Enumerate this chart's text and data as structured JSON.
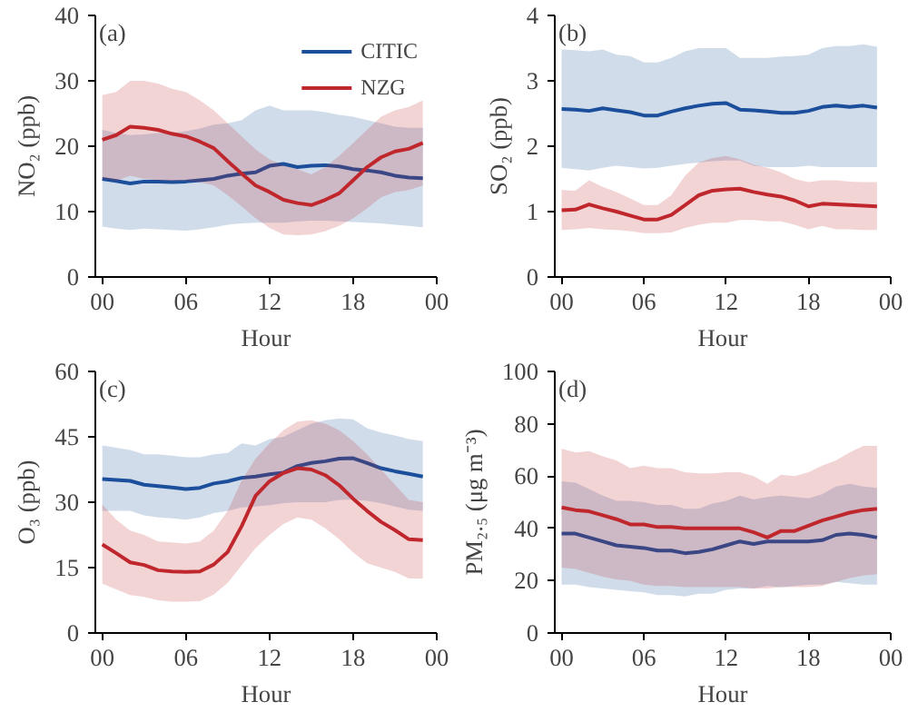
{
  "chart_data": [
    {
      "type": "line",
      "ylabel": "NO₂ (ppb)",
      "xlabel": "Hour",
      "annotations": [
        "(a)"
      ],
      "legend": "top right",
      "grid": false,
      "marker": "none",
      "line_style": "solid",
      "x": [
        0,
        1,
        2,
        3,
        4,
        5,
        6,
        7,
        8,
        9,
        10,
        11,
        12,
        13,
        14,
        15,
        16,
        17,
        18,
        19,
        20,
        21,
        22,
        23
      ],
      "xlim": [
        -0.5,
        24
      ],
      "xticks": [
        {
          "value": 0,
          "label": "00"
        },
        {
          "value": 6,
          "label": "06"
        },
        {
          "value": 12,
          "label": "12"
        },
        {
          "value": 18,
          "label": "18"
        },
        {
          "value": 24,
          "label": "00"
        }
      ],
      "ylim": [
        0,
        40
      ],
      "yticks": [
        0,
        10,
        20,
        30,
        40
      ],
      "series": [
        {
          "name": "CITIC",
          "color": "#1b4f9c",
          "values": [
            15,
            14.7,
            14.3,
            14.6,
            14.6,
            14.5,
            14.6,
            14.8,
            15,
            15.5,
            15.8,
            16,
            17,
            17.3,
            16.8,
            17,
            17.1,
            16.9,
            16.5,
            16.3,
            16,
            15.5,
            15.2,
            15.1
          ],
          "lower": [
            7.7,
            7.4,
            7.2,
            7.4,
            7.3,
            7.2,
            7.1,
            7.3,
            7.6,
            8,
            8.2,
            8.3,
            8.3,
            8.3,
            8.5,
            8.6,
            8.6,
            8.5,
            8.4,
            8.3,
            8.2,
            8,
            7.8,
            7.6
          ],
          "upper": [
            22.5,
            22,
            21.7,
            21.8,
            22,
            22,
            22.3,
            22.7,
            23.3,
            23.5,
            24,
            25.5,
            26.2,
            25.5,
            25.5,
            25.5,
            25.2,
            24.8,
            24.5,
            24,
            23.5,
            23,
            22.8,
            22.8
          ]
        },
        {
          "name": "NZG",
          "color": "#c0272d",
          "values": [
            21,
            21.7,
            23,
            22.8,
            22.5,
            21.9,
            21.5,
            20.7,
            19.7,
            17.7,
            15.8,
            14,
            13,
            11.8,
            11.3,
            11,
            11.8,
            12.8,
            14.8,
            16.8,
            18.3,
            19.2,
            19.6,
            20.5
          ],
          "lower": [
            15,
            14.7,
            15.5,
            15,
            14.8,
            14.7,
            14.7,
            14.5,
            14,
            12.5,
            10.8,
            9,
            7.5,
            6.5,
            6.4,
            6.5,
            7,
            7.8,
            9,
            10.5,
            12.2,
            13,
            13.3,
            14
          ],
          "upper": [
            27.8,
            28.3,
            30,
            30,
            29.6,
            28.8,
            28.3,
            27,
            25.5,
            23.5,
            21.5,
            19.5,
            18,
            17,
            16.5,
            15.7,
            16.8,
            18.5,
            20.5,
            22.5,
            24.5,
            25.5,
            26,
            27
          ]
        }
      ]
    },
    {
      "type": "line",
      "ylabel": "SO₂ (ppb)",
      "xlabel": "Hour",
      "annotations": [
        "(b)"
      ],
      "grid": false,
      "marker": "none",
      "line_style": "solid",
      "x": [
        0,
        1,
        2,
        3,
        4,
        5,
        6,
        7,
        8,
        9,
        10,
        11,
        12,
        13,
        14,
        15,
        16,
        17,
        18,
        19,
        20,
        21,
        22,
        23
      ],
      "xlim": [
        -0.5,
        24
      ],
      "xticks": [
        {
          "value": 0,
          "label": "00"
        },
        {
          "value": 6,
          "label": "06"
        },
        {
          "value": 12,
          "label": "12"
        },
        {
          "value": 18,
          "label": "18"
        },
        {
          "value": 24,
          "label": "00"
        }
      ],
      "ylim": [
        0,
        4
      ],
      "yticks": [
        0,
        1,
        2,
        3,
        4
      ],
      "series": [
        {
          "color": "#1b4f9c",
          "values": [
            2.57,
            2.56,
            2.54,
            2.58,
            2.55,
            2.52,
            2.47,
            2.47,
            2.53,
            2.58,
            2.62,
            2.65,
            2.66,
            2.56,
            2.55,
            2.53,
            2.51,
            2.51,
            2.54,
            2.6,
            2.62,
            2.6,
            2.62,
            2.59
          ],
          "lower": [
            1.67,
            1.65,
            1.63,
            1.67,
            1.7,
            1.68,
            1.66,
            1.67,
            1.7,
            1.73,
            1.75,
            1.77,
            1.78,
            1.78,
            1.7,
            1.68,
            1.68,
            1.68,
            1.7,
            1.68,
            1.68,
            1.68,
            1.68,
            1.68
          ],
          "upper": [
            3.48,
            3.47,
            3.45,
            3.48,
            3.4,
            3.38,
            3.28,
            3.28,
            3.35,
            3.45,
            3.5,
            3.5,
            3.5,
            3.35,
            3.35,
            3.35,
            3.37,
            3.38,
            3.4,
            3.5,
            3.53,
            3.53,
            3.56,
            3.52
          ]
        },
        {
          "color": "#c0272d",
          "values": [
            1.02,
            1.03,
            1.11,
            1.05,
            1.0,
            0.94,
            0.88,
            0.88,
            0.95,
            1.1,
            1.25,
            1.32,
            1.34,
            1.35,
            1.3,
            1.26,
            1.23,
            1.17,
            1.08,
            1.12,
            1.11,
            1.1,
            1.09,
            1.08
          ],
          "lower": [
            0.72,
            0.73,
            0.75,
            0.73,
            0.72,
            0.7,
            0.67,
            0.67,
            0.68,
            0.75,
            0.8,
            0.83,
            0.83,
            0.87,
            0.87,
            0.85,
            0.85,
            0.8,
            0.73,
            0.78,
            0.73,
            0.73,
            0.72,
            0.72
          ],
          "upper": [
            1.33,
            1.32,
            1.48,
            1.38,
            1.3,
            1.2,
            1.1,
            1.1,
            1.25,
            1.55,
            1.75,
            1.82,
            1.85,
            1.8,
            1.72,
            1.67,
            1.6,
            1.5,
            1.45,
            1.48,
            1.48,
            1.46,
            1.45,
            1.45
          ]
        }
      ]
    },
    {
      "type": "line",
      "ylabel": "O₃ (ppb)",
      "xlabel": "Hour",
      "annotations": [
        "(c)"
      ],
      "grid": false,
      "marker": "none",
      "line_style": "solid",
      "x": [
        0,
        1,
        2,
        3,
        4,
        5,
        6,
        7,
        8,
        9,
        10,
        11,
        12,
        13,
        14,
        15,
        16,
        17,
        18,
        19,
        20,
        21,
        22,
        23
      ],
      "xlim": [
        -0.5,
        24
      ],
      "xticks": [
        {
          "value": 0,
          "label": "00"
        },
        {
          "value": 6,
          "label": "06"
        },
        {
          "value": 12,
          "label": "12"
        },
        {
          "value": 18,
          "label": "18"
        },
        {
          "value": 24,
          "label": "00"
        }
      ],
      "ylim": [
        0,
        60
      ],
      "yticks": [
        0,
        15,
        30,
        45,
        60
      ],
      "series": [
        {
          "color": "#1b4f9c",
          "values": [
            35.3,
            35.1,
            34.9,
            34,
            33.7,
            33.4,
            33,
            33.3,
            34.3,
            34.8,
            35.6,
            35.9,
            36.4,
            36.8,
            38.3,
            39,
            39.4,
            40,
            40.1,
            39,
            37.8,
            37.1,
            36.5,
            35.9
          ],
          "lower": [
            28,
            28,
            28,
            27,
            26.5,
            26.3,
            26,
            26.5,
            27.5,
            28,
            28.8,
            29,
            29.3,
            29.8,
            30,
            30,
            30,
            30.5,
            30.6,
            30.3,
            29.8,
            29,
            28.3,
            28
          ],
          "upper": [
            43,
            42.5,
            42,
            41,
            41,
            40.7,
            40.3,
            40.3,
            41,
            41.3,
            43.5,
            43,
            44.5,
            45,
            46.5,
            48,
            48.8,
            49.2,
            49,
            47,
            46,
            45.3,
            44.5,
            44
          ]
        },
        {
          "color": "#c0272d",
          "values": [
            20.3,
            18.3,
            16.2,
            15.6,
            14.4,
            14.1,
            14,
            14.1,
            15.7,
            18.6,
            24.5,
            31.5,
            34.8,
            36.7,
            37.8,
            37.5,
            36.2,
            33.9,
            30.8,
            28,
            25.5,
            23.6,
            21.5,
            21.3
          ],
          "lower": [
            11.3,
            10,
            8.7,
            8.3,
            7.5,
            7.2,
            7.2,
            7.3,
            8.8,
            11.5,
            15.5,
            19.5,
            22.5,
            25,
            26.5,
            26,
            24,
            21.5,
            18.5,
            16,
            15,
            14,
            12.5,
            12.5
          ],
          "upper": [
            29.5,
            26,
            23.5,
            22.5,
            21,
            20.8,
            20.5,
            21,
            23.5,
            28,
            35,
            40,
            43.5,
            46.5,
            48.5,
            48.8,
            48,
            46.5,
            44,
            41,
            37.5,
            34,
            30.5,
            30
          ]
        }
      ]
    },
    {
      "type": "line",
      "ylabel": "PM₂.₅ (μg m⁻³)",
      "xlabel": "Hour",
      "annotations": [
        "(d)"
      ],
      "grid": false,
      "marker": "none",
      "line_style": "solid",
      "x": [
        0,
        1,
        2,
        3,
        4,
        5,
        6,
        7,
        8,
        9,
        10,
        11,
        12,
        13,
        14,
        15,
        16,
        17,
        18,
        19,
        20,
        21,
        22,
        23
      ],
      "xlim": [
        -0.5,
        24
      ],
      "xticks": [
        {
          "value": 0,
          "label": "00"
        },
        {
          "value": 6,
          "label": "06"
        },
        {
          "value": 12,
          "label": "12"
        },
        {
          "value": 18,
          "label": "18"
        },
        {
          "value": 24,
          "label": "00"
        }
      ],
      "ylim": [
        0,
        100
      ],
      "yticks": [
        0,
        20,
        40,
        60,
        80,
        100
      ],
      "series": [
        {
          "color": "#1b4f9c",
          "values": [
            38,
            38,
            36.5,
            35,
            33.5,
            33,
            32.5,
            31.5,
            31.5,
            30.5,
            31,
            32,
            33.5,
            35,
            34,
            35,
            35,
            35,
            35,
            35.5,
            37.5,
            38,
            37.5,
            36.5
          ],
          "lower": [
            18.5,
            18.5,
            17.5,
            17,
            16.5,
            16,
            15.5,
            14.5,
            14.5,
            14,
            15,
            15,
            16.5,
            17,
            17,
            18,
            17.5,
            18,
            18.5,
            18.5,
            19.5,
            19,
            18.5,
            18.5
          ],
          "upper": [
            58,
            57.5,
            55,
            52.5,
            50.5,
            50.5,
            50,
            49,
            49,
            47.5,
            47.5,
            49.5,
            50.5,
            52.5,
            51,
            52,
            52.5,
            52,
            51.5,
            53,
            56,
            57,
            56,
            55.5
          ]
        },
        {
          "color": "#c0272d",
          "values": [
            48,
            47,
            46.5,
            45,
            43.5,
            41.5,
            41.5,
            40.5,
            40.5,
            40,
            40,
            40,
            40,
            40,
            38.5,
            36.5,
            39,
            39,
            41,
            43,
            44.5,
            46,
            47,
            47.5
          ],
          "lower": [
            25,
            24.5,
            23,
            21.5,
            20.5,
            20,
            18.5,
            18,
            18,
            17.5,
            17.5,
            17.5,
            17.5,
            17.5,
            17,
            17,
            17.5,
            17.5,
            17.5,
            18,
            19.5,
            21,
            22,
            22.5
          ],
          "upper": [
            70.5,
            69,
            69.5,
            67.5,
            66,
            63,
            64,
            63,
            63,
            61.5,
            61,
            61,
            61.5,
            61.5,
            60,
            57,
            60.5,
            60,
            61.5,
            64,
            66,
            69,
            71.5,
            71.5
          ]
        }
      ]
    }
  ]
}
